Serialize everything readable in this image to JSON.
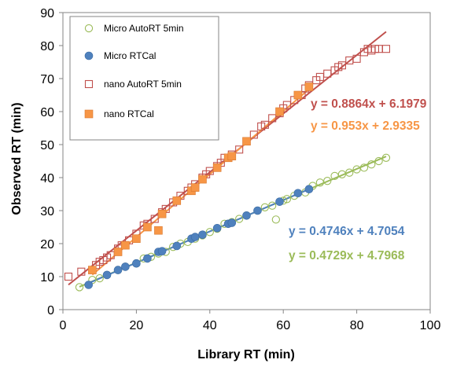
{
  "chart_data": {
    "type": "scatter",
    "xlabel": "Library RT (min)",
    "ylabel": "Observed RT (min)",
    "xlim": [
      0,
      100
    ],
    "ylim": [
      0,
      90
    ],
    "xticks": [
      0,
      20,
      40,
      60,
      80,
      100
    ],
    "yticks": [
      0,
      10,
      20,
      30,
      40,
      50,
      60,
      70,
      80,
      90
    ],
    "grid": false,
    "legend_position": "top-left",
    "series": [
      {
        "name": "Micro AutoRT 5min",
        "marker": "open-circle",
        "color": "#9bbb59",
        "trendline": {
          "slope": 0.4729,
          "intercept": 4.7968,
          "x_range": [
            4.5,
            88
          ],
          "color": "#9bbb59"
        },
        "x": [
          4.5,
          8,
          10,
          12,
          15,
          17,
          20,
          22,
          24,
          26,
          28,
          30,
          32,
          34,
          36,
          38,
          40,
          42,
          44,
          46,
          48,
          50,
          53,
          55,
          57,
          58,
          60,
          61,
          63,
          66,
          68,
          70,
          72,
          74,
          76,
          78,
          80,
          82,
          84,
          86,
          88
        ],
        "y": [
          6.8,
          9,
          9.5,
          10.5,
          12,
          13,
          14,
          15.5,
          16,
          17,
          17.5,
          19,
          20,
          20.5,
          21.5,
          22.5,
          23.5,
          24.5,
          26,
          26.5,
          27.5,
          28.5,
          30,
          31,
          31.5,
          27.3,
          33,
          33.5,
          34.5,
          35.5,
          37.5,
          38.5,
          39,
          40.5,
          41,
          41.5,
          42.5,
          43,
          44,
          45,
          46
        ]
      },
      {
        "name": "Micro RTCal",
        "marker": "filled-circle",
        "color": "#4f81bd",
        "trendline": {
          "slope": 0.4746,
          "intercept": 4.7054,
          "x_range": [
            7,
            67
          ],
          "color": "#4f81bd"
        },
        "x": [
          7,
          12,
          15,
          17,
          20,
          23,
          26,
          27,
          31,
          35,
          36,
          38,
          42,
          45,
          46,
          50,
          53,
          59,
          64,
          67
        ],
        "y": [
          7.5,
          10.5,
          12,
          13,
          14,
          15.5,
          17.5,
          17.7,
          19.3,
          21.5,
          22,
          22.7,
          24.7,
          26,
          26.3,
          28.5,
          30,
          32.7,
          35.3,
          36.5
        ]
      },
      {
        "name": "nano AutoRT 5min",
        "marker": "open-square",
        "color": "#c0504d",
        "trendline": {
          "slope": 0.8864,
          "intercept": 6.1979,
          "x_range": [
            1.5,
            88
          ],
          "color": "#c0504d"
        },
        "x": [
          1.5,
          5,
          9,
          10,
          11,
          12,
          13,
          15,
          16,
          18,
          20,
          22,
          23,
          25,
          27,
          28,
          30,
          32,
          34,
          35,
          36,
          38,
          39,
          40,
          42,
          43,
          44,
          46,
          48,
          50,
          52,
          54,
          55,
          57,
          59,
          60,
          61,
          63,
          65,
          66,
          67,
          69,
          70,
          72,
          74,
          75,
          76,
          78,
          80,
          82,
          83,
          84,
          85,
          86,
          88
        ],
        "y": [
          10,
          11.5,
          13.5,
          14.5,
          15,
          15.8,
          16.5,
          18.5,
          19.5,
          21,
          23,
          25.5,
          26,
          27.5,
          29.5,
          30.5,
          32.5,
          34.5,
          36,
          37,
          38,
          40,
          41,
          42,
          43.5,
          44.5,
          46,
          47,
          48.5,
          51,
          53,
          55.5,
          56,
          58,
          59.5,
          61,
          62,
          63.5,
          65,
          67,
          68,
          69.5,
          70.5,
          71.5,
          72.5,
          73.5,
          74,
          75.5,
          76,
          78,
          79,
          78.5,
          79,
          79,
          79
        ]
      },
      {
        "name": "nano RTCal",
        "marker": "filled-square",
        "color": "#f79646",
        "trendline": {
          "slope": 0.953,
          "intercept": 2.9335,
          "x_range": [
            8,
            67
          ],
          "color": "#f79646"
        },
        "x": [
          8,
          15,
          17,
          20,
          23,
          26,
          27,
          31,
          35,
          36,
          38,
          42,
          45,
          46,
          50,
          59,
          64,
          67
        ],
        "y": [
          12,
          17.5,
          19.5,
          21.5,
          25,
          24,
          29,
          33,
          36,
          37,
          39.5,
          43,
          46,
          46.5,
          51,
          60,
          65,
          67.5
        ]
      }
    ],
    "annotations": [
      {
        "text": "y = 0.8864x + 6.1979",
        "color": "#c0504d"
      },
      {
        "text": "y = 0.953x + 2.9335",
        "color": "#f79646"
      },
      {
        "text": "y = 0.4746x + 4.7054",
        "color": "#4f81bd"
      },
      {
        "text": "y = 0.4729x + 4.7968",
        "color": "#9bbb59"
      }
    ]
  }
}
